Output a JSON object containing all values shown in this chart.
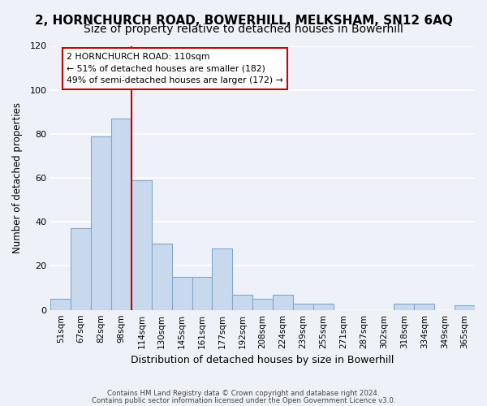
{
  "title": "2, HORNCHURCH ROAD, BOWERHILL, MELKSHAM, SN12 6AQ",
  "subtitle": "Size of property relative to detached houses in Bowerhill",
  "xlabel": "Distribution of detached houses by size in Bowerhill",
  "ylabel": "Number of detached properties",
  "bar_labels": [
    "51sqm",
    "67sqm",
    "82sqm",
    "98sqm",
    "114sqm",
    "130sqm",
    "145sqm",
    "161sqm",
    "177sqm",
    "192sqm",
    "208sqm",
    "224sqm",
    "239sqm",
    "255sqm",
    "271sqm",
    "287sqm",
    "302sqm",
    "318sqm",
    "334sqm",
    "349sqm",
    "365sqm"
  ],
  "bar_values": [
    5,
    37,
    79,
    87,
    59,
    30,
    15,
    15,
    28,
    7,
    5,
    7,
    3,
    3,
    0,
    0,
    0,
    3,
    3,
    0,
    2
  ],
  "bar_color": "#c9d9ed",
  "bar_edgecolor": "#7fa8c9",
  "vline_x": 3.5,
  "vline_color": "#cc0000",
  "ylim": [
    0,
    120
  ],
  "yticks": [
    0,
    20,
    40,
    60,
    80,
    100,
    120
  ],
  "annotation_title": "2 HORNCHURCH ROAD: 110sqm",
  "annotation_line1": "← 51% of detached houses are smaller (182)",
  "annotation_line2": "49% of semi-detached houses are larger (172) →",
  "annotation_box_color": "#ffffff",
  "annotation_box_edgecolor": "#cc0000",
  "footer1": "Contains HM Land Registry data © Crown copyright and database right 2024.",
  "footer2": "Contains public sector information licensed under the Open Government Licence v3.0.",
  "background_color": "#eef2f8",
  "grid_color": "#ffffff",
  "title_fontsize": 11,
  "subtitle_fontsize": 10
}
